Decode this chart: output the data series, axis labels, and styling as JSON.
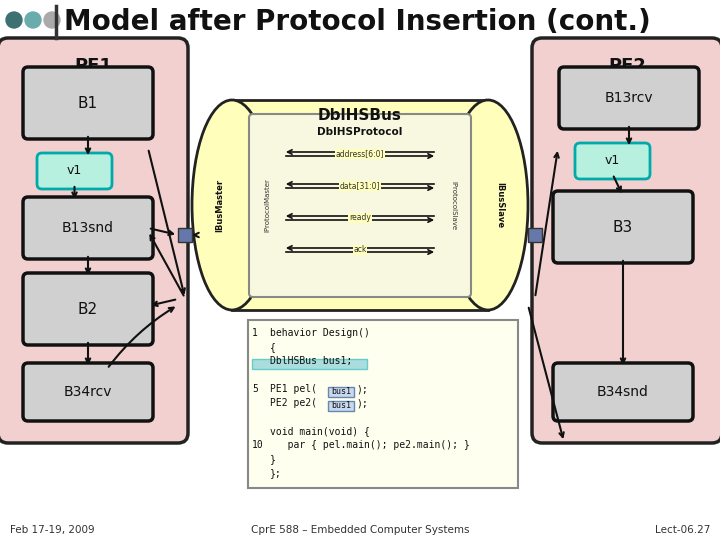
{
  "title": "Model after Protocol Insertion (cont.)",
  "title_fontsize": 20,
  "bg_color": "#ffffff",
  "header_dots_colors": [
    "#3d7070",
    "#6aacac",
    "#aaaaaa"
  ],
  "footer_left": "Feb 17-19, 2009",
  "footer_center": "CprE 588 – Embedded Computer Systems",
  "footer_right": "Lect-06.27",
  "pe1_label": "PE1",
  "pe2_label": "PE2",
  "pe_bg_color": "#f2d0d0",
  "pe_border_color": "#222222",
  "block_bg_color": "#d0d0d0",
  "block_border_color": "#111111",
  "v1_bg_color": "#b8f0e0",
  "v1_border_color": "#00aaaa",
  "bus_bg_color": "#ffffbb",
  "bus_border_color": "#222222",
  "bus_label": "DblHSBus",
  "protocol_label": "DblHSProtocol",
  "bus_master_label": "IBusMaster",
  "bus_slave_label": "IBusSlave",
  "protocol_master_label": "IProtocolMaster",
  "protocol_slave_label": "IProtocolSlave",
  "signal_labels": [
    "address[6:0]",
    "data[31:0]",
    "ready",
    "ack"
  ],
  "conn_color": "#6677aa",
  "code_bg": "#fffff0",
  "code_border": "#888888",
  "highlight_bus1_color": "#aadddd",
  "highlight_busl_color": "#c8d8f0"
}
